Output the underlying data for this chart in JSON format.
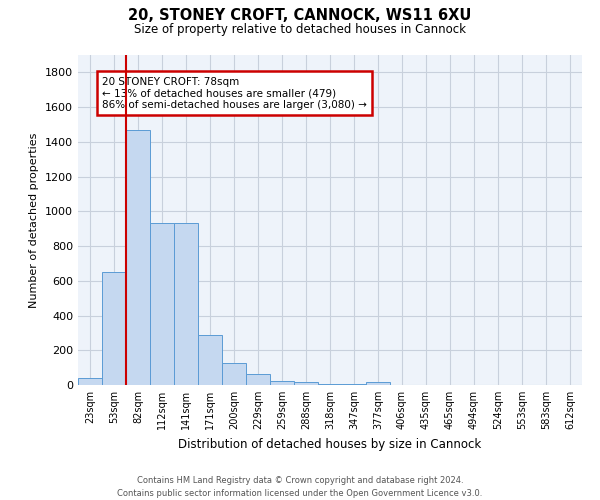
{
  "title1": "20, STONEY CROFT, CANNOCK, WS11 6XU",
  "title2": "Size of property relative to detached houses in Cannock",
  "xlabel": "Distribution of detached houses by size in Cannock",
  "ylabel": "Number of detached properties",
  "categories": [
    "23sqm",
    "53sqm",
    "82sqm",
    "112sqm",
    "141sqm",
    "171sqm",
    "200sqm",
    "229sqm",
    "259sqm",
    "288sqm",
    "318sqm",
    "347sqm",
    "377sqm",
    "406sqm",
    "435sqm",
    "465sqm",
    "494sqm",
    "524sqm",
    "553sqm",
    "583sqm",
    "612sqm"
  ],
  "values": [
    40,
    650,
    1470,
    935,
    935,
    290,
    125,
    65,
    25,
    15,
    5,
    5,
    15,
    0,
    0,
    0,
    0,
    0,
    0,
    0,
    0
  ],
  "bar_color": "#c5d8f0",
  "bar_edge_color": "#5b9bd5",
  "grid_color": "#c8d0dc",
  "background_color": "#eef3fa",
  "vline_x_index": 2,
  "marker_label_line1": "20 STONEY CROFT: 78sqm",
  "marker_label_line2": "← 13% of detached houses are smaller (479)",
  "marker_label_line3": "86% of semi-detached houses are larger (3,080) →",
  "annotation_box_facecolor": "#ffffff",
  "annotation_box_edgecolor": "#cc0000",
  "vline_color": "#cc0000",
  "ylim": [
    0,
    1900
  ],
  "yticks": [
    0,
    200,
    400,
    600,
    800,
    1000,
    1200,
    1400,
    1600,
    1800
  ],
  "footer1": "Contains HM Land Registry data © Crown copyright and database right 2024.",
  "footer2": "Contains public sector information licensed under the Open Government Licence v3.0."
}
